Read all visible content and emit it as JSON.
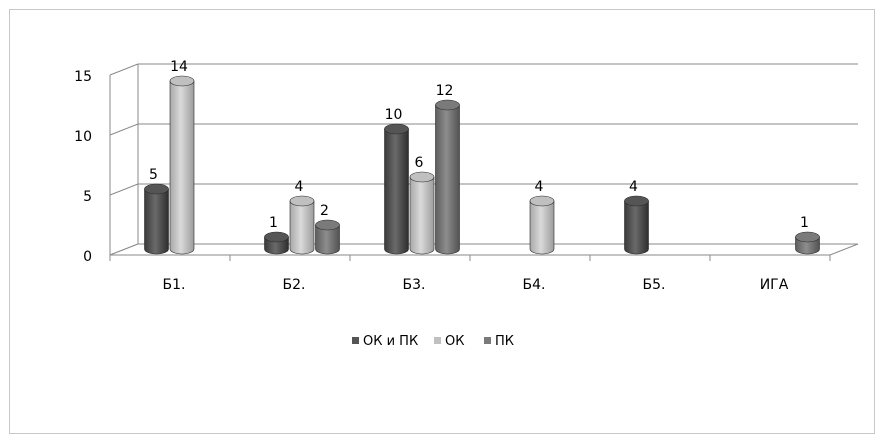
{
  "chart_data": {
    "type": "bar",
    "categories": [
      "Б1.",
      "Б2.",
      "Б3.",
      "Б4.",
      "Б5.",
      "ИГА"
    ],
    "series": [
      {
        "name": "ОК и ПК",
        "color": "#555555",
        "values": [
          5,
          1,
          10,
          null,
          4,
          null
        ]
      },
      {
        "name": "ОК",
        "color": "#c0c0c0",
        "values": [
          14,
          4,
          6,
          4,
          null,
          null
        ]
      },
      {
        "name": "ПК",
        "color": "#7a7a7a",
        "values": [
          null,
          2,
          12,
          null,
          null,
          1
        ]
      }
    ],
    "ylim": [
      0,
      15
    ],
    "yticks": [
      0,
      5,
      10,
      15
    ],
    "grid": true,
    "legend_position": "bottom",
    "data_labels": true,
    "style": "3d-cylinder"
  }
}
